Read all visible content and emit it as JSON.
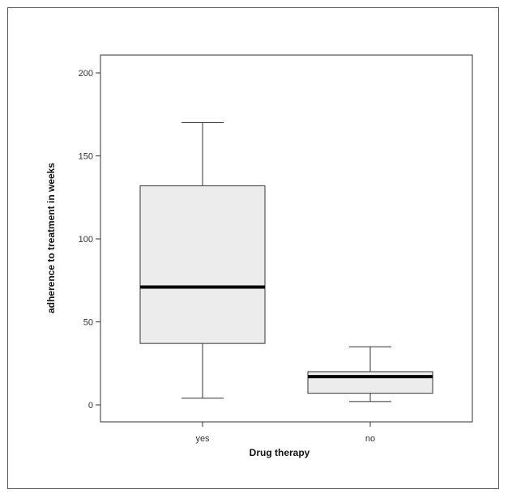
{
  "chart_data": {
    "type": "box",
    "title": "",
    "xlabel": "Drug therapy",
    "ylabel": "adherence to treatment in weeks",
    "ylim": [
      -10,
      210
    ],
    "yticks": [
      0,
      50,
      100,
      150,
      200
    ],
    "categories": [
      "yes",
      "no"
    ],
    "boxes": [
      {
        "category": "yes",
        "min": 4,
        "q1": 37,
        "median": 71,
        "q3": 132,
        "max": 170
      },
      {
        "category": "no",
        "min": 2,
        "q1": 7,
        "median": 17,
        "q3": 20,
        "max": 35
      }
    ],
    "grid": false,
    "colors": {
      "box_fill": "#ececec",
      "stroke": "#333333",
      "median": "#000000"
    }
  }
}
